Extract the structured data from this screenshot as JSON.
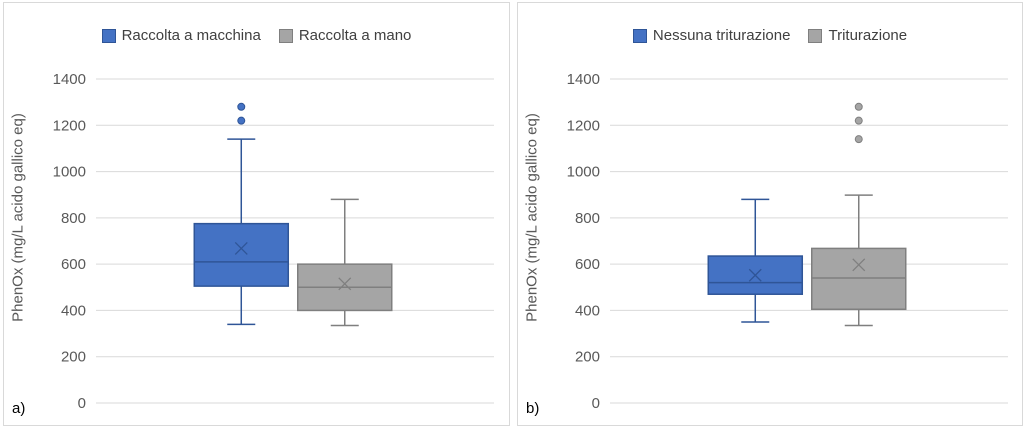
{
  "chart_data": [
    {
      "type": "box",
      "panel_label": "a)",
      "ylabel": "PhenOx (mg/L acido gallico eq)",
      "ylim": [
        0,
        1400
      ],
      "yticks": [
        0,
        200,
        400,
        600,
        800,
        1000,
        1200,
        1400
      ],
      "grid": true,
      "legend_position": "top",
      "series": [
        {
          "name": "Raccolta a macchina",
          "color": "#4472c4",
          "edge": "#2f5597",
          "min": 340,
          "q1": 505,
          "median": 610,
          "q3": 775,
          "max": 1140,
          "mean": 668,
          "outliers": [
            1220,
            1280
          ]
        },
        {
          "name": "Raccolta a mano",
          "color": "#a5a5a5",
          "edge": "#7f7f7f",
          "min": 335,
          "q1": 400,
          "median": 500,
          "q3": 600,
          "max": 880,
          "mean": 515,
          "outliers": []
        }
      ]
    },
    {
      "type": "box",
      "panel_label": "b)",
      "ylabel": "PhenOx (mg/L acido gallico eq)",
      "ylim": [
        0,
        1400
      ],
      "yticks": [
        0,
        200,
        400,
        600,
        800,
        1000,
        1200,
        1400
      ],
      "grid": true,
      "legend_position": "top",
      "series": [
        {
          "name": "Nessuna triturazione",
          "color": "#4472c4",
          "edge": "#2f5597",
          "min": 350,
          "q1": 470,
          "median": 520,
          "q3": 635,
          "max": 880,
          "mean": 552,
          "outliers": []
        },
        {
          "name": "Triturazione",
          "color": "#a5a5a5",
          "edge": "#7f7f7f",
          "min": 335,
          "q1": 405,
          "median": 540,
          "q3": 668,
          "max": 898,
          "mean": 597,
          "outliers": [
            1140,
            1220,
            1280
          ]
        }
      ]
    }
  ]
}
